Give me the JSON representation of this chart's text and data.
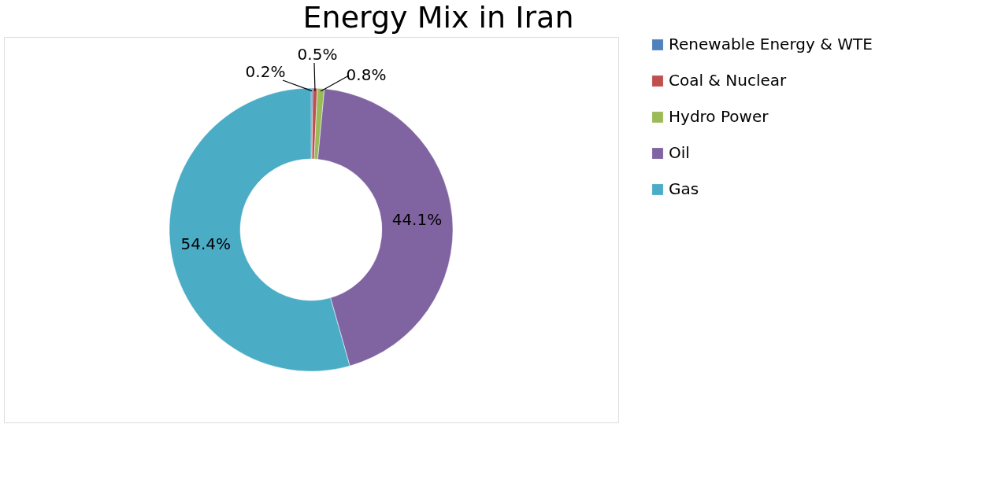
{
  "chart_data": {
    "type": "donut",
    "title": "Energy Mix in Iran",
    "categories": [
      "Renewable Energy & WTE",
      "Coal & Nuclear",
      "Hydro Power",
      "Oil",
      "Gas"
    ],
    "values": [
      0.2,
      0.5,
      0.8,
      44.1,
      54.4
    ],
    "value_labels": [
      "0.2%",
      "0.5%",
      "0.8%",
      "44.1%",
      "54.4%"
    ],
    "colors": [
      "#4f81bd",
      "#c0504d",
      "#9bbb59",
      "#8064a2",
      "#4bacc6"
    ],
    "legend": "right"
  }
}
